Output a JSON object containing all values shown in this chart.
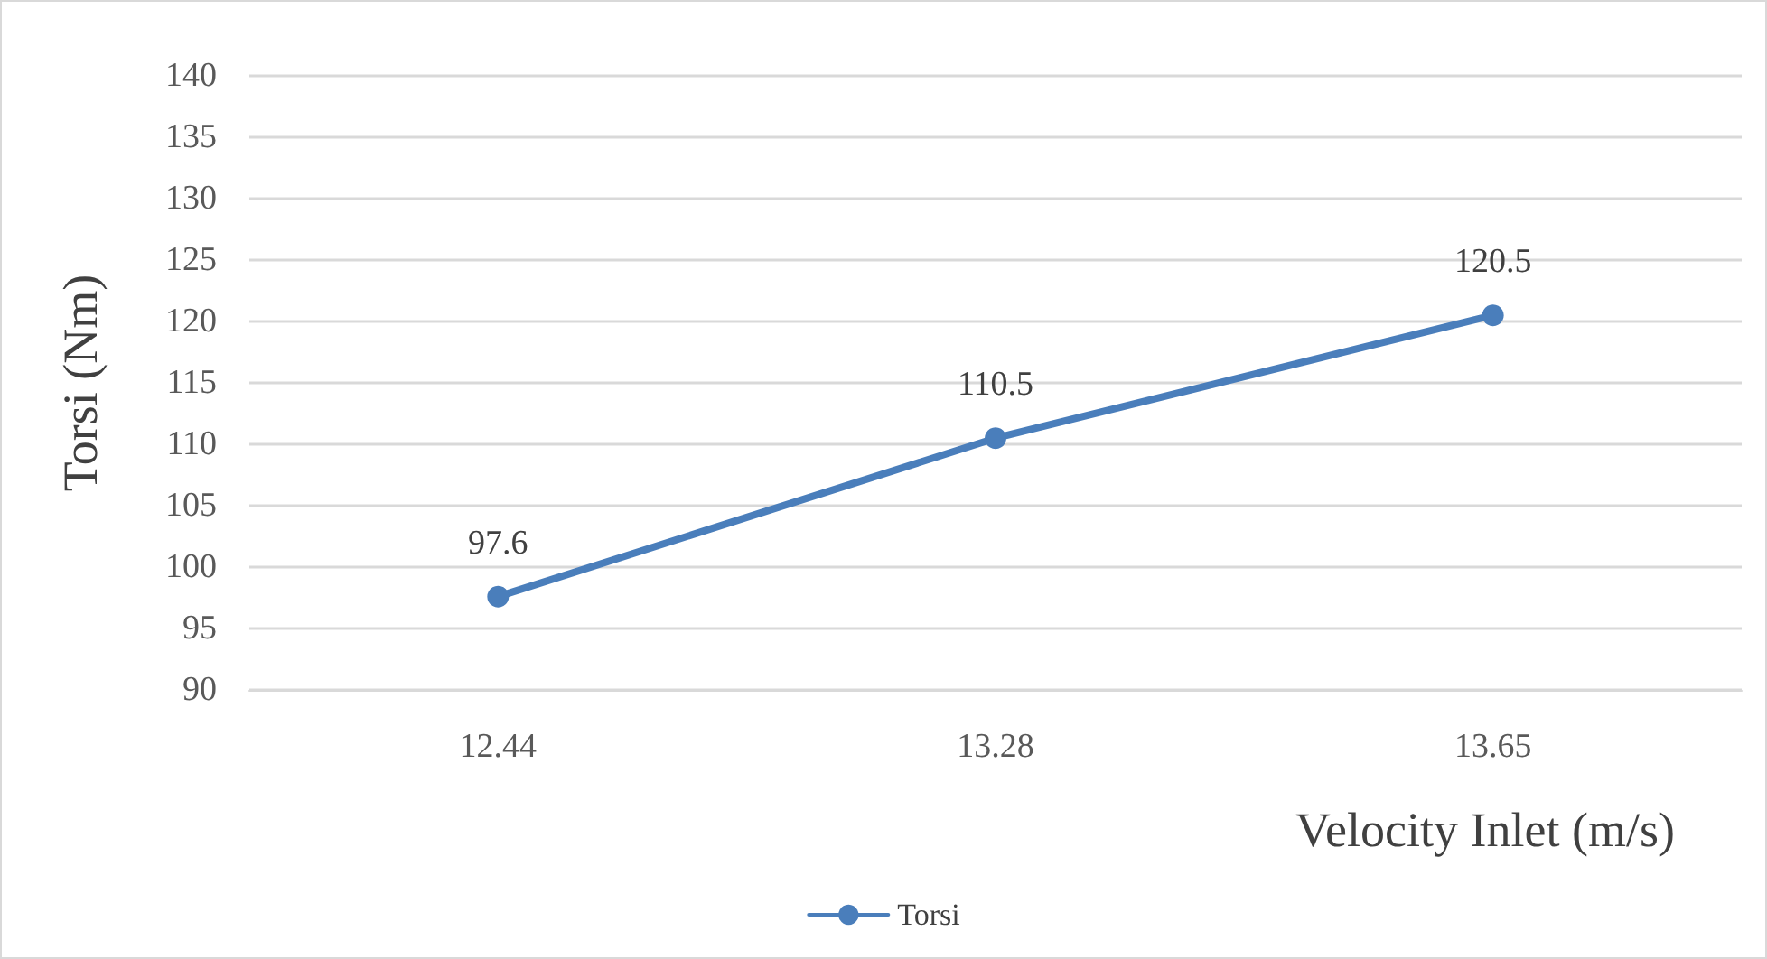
{
  "chart_data": {
    "type": "line",
    "xlabel": "Velocity Inlet (m/s)",
    "ylabel": "Torsi (Nm)",
    "categories": [
      "12.44",
      "13.28",
      "13.65"
    ],
    "series": [
      {
        "name": "Torsi",
        "color": "#4a7ebb",
        "values": [
          97.6,
          110.5,
          120.5
        ]
      }
    ],
    "ylim": [
      90,
      140
    ],
    "yticks": [
      90,
      95,
      100,
      105,
      110,
      115,
      120,
      125,
      130,
      135,
      140
    ],
    "grid": "y",
    "legend": "bottom",
    "marker": "circle",
    "line_style": "solid",
    "data_labels": true
  }
}
